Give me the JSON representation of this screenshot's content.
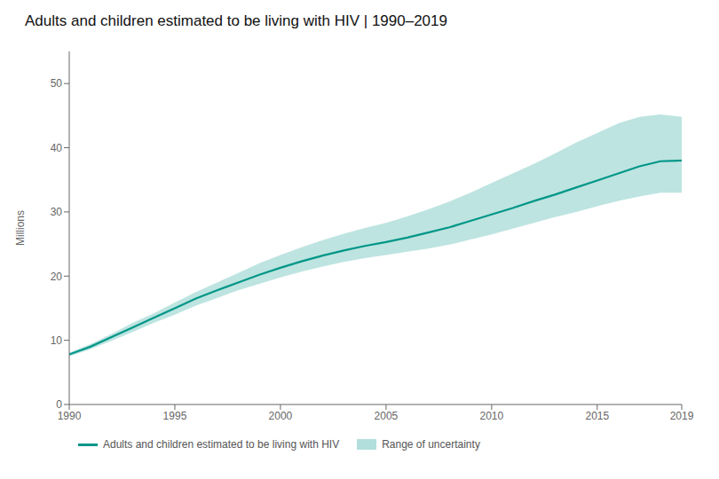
{
  "chart_data": {
    "type": "line",
    "title": "Adults and children estimated to be living with HIV | 1990–2019",
    "y_label": "Millions",
    "x": [
      1990,
      1991,
      1992,
      1993,
      1994,
      1995,
      1996,
      1997,
      1998,
      1999,
      2000,
      2001,
      2002,
      2003,
      2004,
      2005,
      2006,
      2007,
      2008,
      2009,
      2010,
      2011,
      2012,
      2013,
      2014,
      2015,
      2016,
      2017,
      2018,
      2019
    ],
    "series": [
      {
        "name": "Adults and children estimated to be living with HIV",
        "type": "line",
        "color": "#009688",
        "values": [
          7.8,
          9.0,
          10.5,
          12.0,
          13.5,
          15.0,
          16.5,
          17.8,
          19.0,
          20.2,
          21.3,
          22.3,
          23.2,
          24.0,
          24.7,
          25.3,
          26.0,
          26.8,
          27.6,
          28.6,
          29.6,
          30.6,
          31.7,
          32.7,
          33.8,
          34.9,
          36.0,
          37.1,
          37.9,
          38.0
        ]
      },
      {
        "name": "Range of uncertainty",
        "type": "band",
        "color": "#B2DFDB",
        "lower": [
          7.5,
          8.6,
          9.9,
          11.3,
          12.7,
          14.0,
          15.4,
          16.6,
          17.8,
          18.8,
          19.8,
          20.7,
          21.5,
          22.2,
          22.8,
          23.3,
          23.8,
          24.3,
          24.9,
          25.7,
          26.5,
          27.4,
          28.3,
          29.2,
          30.0,
          30.9,
          31.7,
          32.4,
          33.0,
          33.0
        ],
        "upper": [
          8.1,
          9.4,
          11.0,
          12.7,
          14.2,
          15.9,
          17.5,
          19.0,
          20.5,
          22.0,
          23.3,
          24.5,
          25.6,
          26.6,
          27.5,
          28.3,
          29.3,
          30.4,
          31.6,
          33.0,
          34.5,
          36.0,
          37.5,
          39.1,
          40.8,
          42.3,
          43.8,
          44.8,
          45.2,
          44.8
        ]
      }
    ],
    "xlim": [
      1990,
      2019
    ],
    "xticks": [
      1990,
      1995,
      2000,
      2005,
      2010,
      2015,
      2019
    ],
    "ylim": [
      0,
      55
    ],
    "yticks": [
      0,
      10,
      20,
      30,
      40,
      50
    ],
    "grid": false,
    "legend": "bottom"
  }
}
